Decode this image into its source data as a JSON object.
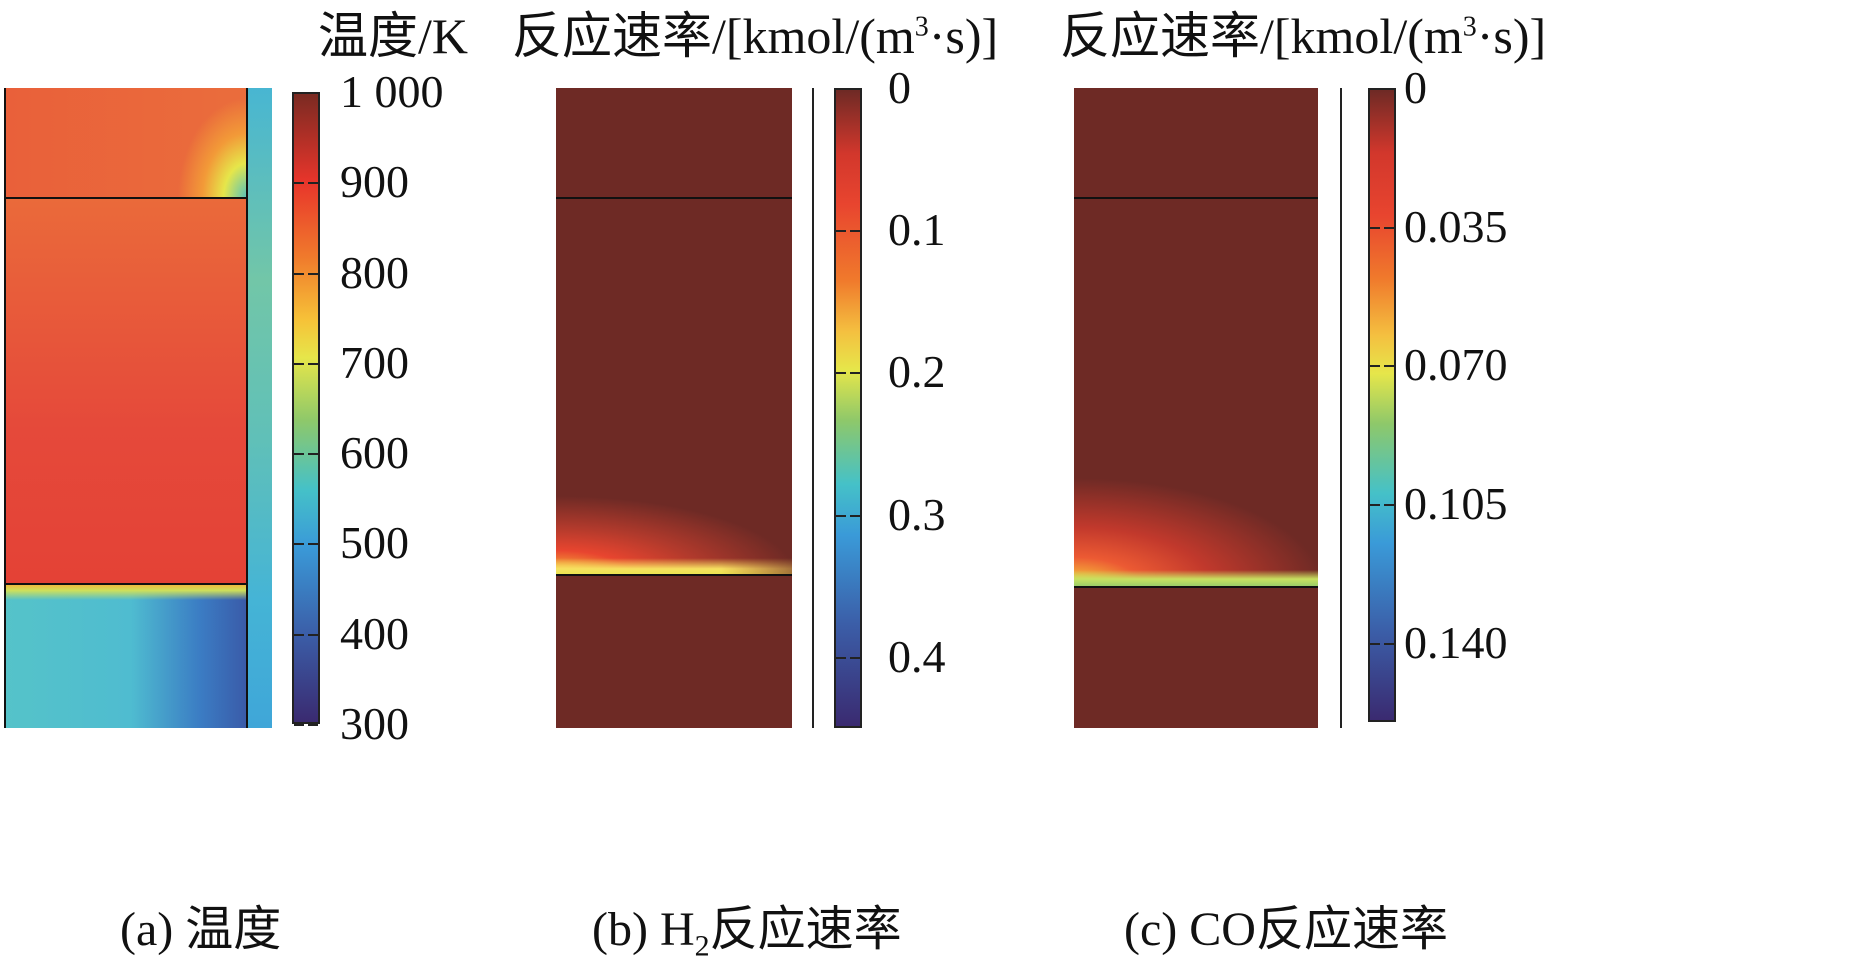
{
  "chart_data": [
    {
      "type": "heatmap",
      "title": "温度/K",
      "caption": "(a) 温度",
      "colorbar": {
        "min": 300,
        "max": 1000,
        "tick_labels": [
          "1 000",
          "900",
          "800",
          "700",
          "600",
          "500",
          "400",
          "300"
        ],
        "tick_values": [
          1000,
          900,
          800,
          700,
          600,
          500,
          400,
          300
        ],
        "reversed": false
      },
      "regions": [
        {
          "name": "top zone",
          "value_range": [
            850,
            920
          ],
          "hot_corner_value": 700
        },
        {
          "name": "middle zone",
          "value_range": [
            880,
            950
          ]
        },
        {
          "name": "bottom zone",
          "value_range": [
            420,
            560
          ]
        },
        {
          "name": "side strip",
          "value_range": [
            520,
            620
          ]
        }
      ]
    },
    {
      "type": "heatmap",
      "title": "反应速率/[kmol/(m",
      "title_sup": "3",
      "title_end": "·s)]",
      "caption_prefix": "(b) H",
      "caption_sub": "2",
      "caption_end": "反应速率",
      "colorbar": {
        "min": 0,
        "max": 0.45,
        "tick_labels": [
          "0",
          "0.1",
          "0.2",
          "0.3",
          "0.4"
        ],
        "tick_values": [
          0,
          0.1,
          0.2,
          0.3,
          0.4
        ],
        "reversed": true
      },
      "peak_value": 0.2
    },
    {
      "type": "heatmap",
      "title": "反应速率/[kmol/(m",
      "title_sup": "3",
      "title_end": "·s)]",
      "caption": "(c) CO反应速率",
      "colorbar": {
        "min": 0,
        "max": 0.16,
        "tick_labels": [
          "0",
          "0.035",
          "0.070",
          "0.105",
          "0.140"
        ],
        "tick_values": [
          0,
          0.035,
          0.07,
          0.105,
          0.14
        ],
        "reversed": true
      },
      "peak_value": 0.07
    }
  ],
  "colors": {
    "jet_stops": [
      "#7a2a22",
      "#e8352b",
      "#f07a2c",
      "#f6c238",
      "#e6e64a",
      "#8ec86a",
      "#45c1c8",
      "#3a9ad8",
      "#3b5ea8",
      "#3a2a70"
    ],
    "dark_red": "#6e2a25"
  }
}
